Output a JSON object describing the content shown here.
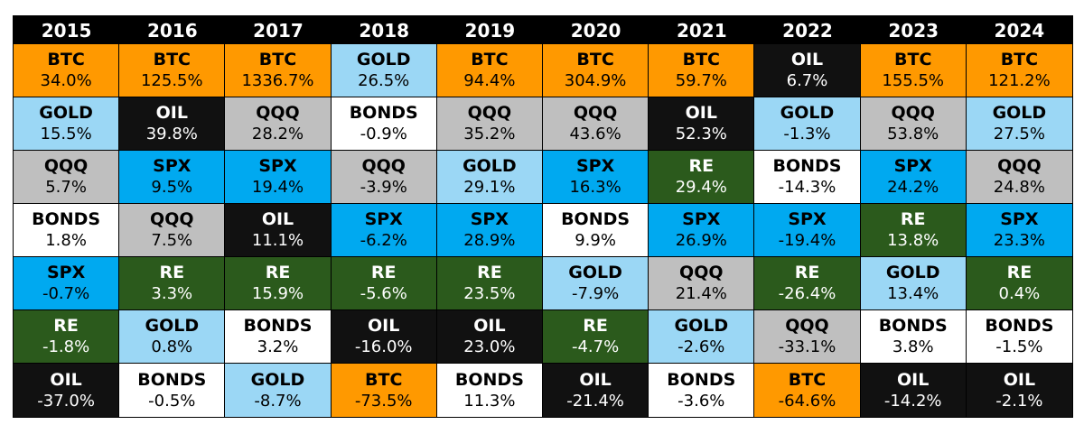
{
  "colors": {
    "BTC": {
      "bg": "#FF9900",
      "fg": "#000000"
    },
    "GOLD": {
      "bg": "#9BD7F5",
      "fg": "#000000"
    },
    "QQQ": {
      "bg": "#BFBFBF",
      "fg": "#000000"
    },
    "BONDS": {
      "bg": "#FFFFFF",
      "fg": "#000000"
    },
    "SPX": {
      "bg": "#00A9F0",
      "fg": "#000000"
    },
    "RE": {
      "bg": "#2B5A1C",
      "fg": "#FFFFFF"
    },
    "OIL": {
      "bg": "#111111",
      "fg": "#FFFFFF"
    }
  },
  "chart_data": {
    "type": "table",
    "columns": [
      {
        "year": "2015",
        "rows": [
          {
            "asset": "BTC",
            "ret": "34.0%"
          },
          {
            "asset": "GOLD",
            "ret": "15.5%"
          },
          {
            "asset": "QQQ",
            "ret": "5.7%"
          },
          {
            "asset": "BONDS",
            "ret": "1.8%"
          },
          {
            "asset": "SPX",
            "ret": "-0.7%"
          },
          {
            "asset": "RE",
            "ret": "-1.8%"
          },
          {
            "asset": "OIL",
            "ret": "-37.0%"
          }
        ]
      },
      {
        "year": "2016",
        "rows": [
          {
            "asset": "BTC",
            "ret": "125.5%"
          },
          {
            "asset": "OIL",
            "ret": "39.8%"
          },
          {
            "asset": "SPX",
            "ret": "9.5%"
          },
          {
            "asset": "QQQ",
            "ret": "7.5%"
          },
          {
            "asset": "RE",
            "ret": "3.3%"
          },
          {
            "asset": "GOLD",
            "ret": "0.8%"
          },
          {
            "asset": "BONDS",
            "ret": "-0.5%"
          }
        ]
      },
      {
        "year": "2017",
        "rows": [
          {
            "asset": "BTC",
            "ret": "1336.7%"
          },
          {
            "asset": "QQQ",
            "ret": "28.2%"
          },
          {
            "asset": "SPX",
            "ret": "19.4%"
          },
          {
            "asset": "OIL",
            "ret": "11.1%"
          },
          {
            "asset": "RE",
            "ret": "15.9%"
          },
          {
            "asset": "BONDS",
            "ret": "3.2%"
          },
          {
            "asset": "GOLD",
            "ret": "-8.7%"
          }
        ]
      },
      {
        "year": "2018",
        "rows": [
          {
            "asset": "GOLD",
            "ret": "26.5%"
          },
          {
            "asset": "BONDS",
            "ret": "-0.9%"
          },
          {
            "asset": "QQQ",
            "ret": "-3.9%"
          },
          {
            "asset": "SPX",
            "ret": "-6.2%"
          },
          {
            "asset": "RE",
            "ret": "-5.6%"
          },
          {
            "asset": "OIL",
            "ret": "-16.0%"
          },
          {
            "asset": "BTC",
            "ret": "-73.5%"
          }
        ]
      },
      {
        "year": "2019",
        "rows": [
          {
            "asset": "BTC",
            "ret": "94.4%"
          },
          {
            "asset": "QQQ",
            "ret": "35.2%"
          },
          {
            "asset": "GOLD",
            "ret": "29.1%"
          },
          {
            "asset": "SPX",
            "ret": "28.9%"
          },
          {
            "asset": "RE",
            "ret": "23.5%"
          },
          {
            "asset": "OIL",
            "ret": "23.0%"
          },
          {
            "asset": "BONDS",
            "ret": "11.3%"
          }
        ]
      },
      {
        "year": "2020",
        "rows": [
          {
            "asset": "BTC",
            "ret": "304.9%"
          },
          {
            "asset": "QQQ",
            "ret": "43.6%"
          },
          {
            "asset": "SPX",
            "ret": "16.3%"
          },
          {
            "asset": "BONDS",
            "ret": "9.9%"
          },
          {
            "asset": "GOLD",
            "ret": "-7.9%"
          },
          {
            "asset": "RE",
            "ret": "-4.7%"
          },
          {
            "asset": "OIL",
            "ret": "-21.4%"
          }
        ]
      },
      {
        "year": "2021",
        "rows": [
          {
            "asset": "BTC",
            "ret": "59.7%"
          },
          {
            "asset": "OIL",
            "ret": "52.3%"
          },
          {
            "asset": "RE",
            "ret": "29.4%"
          },
          {
            "asset": "SPX",
            "ret": "26.9%"
          },
          {
            "asset": "QQQ",
            "ret": "21.4%"
          },
          {
            "asset": "GOLD",
            "ret": "-2.6%"
          },
          {
            "asset": "BONDS",
            "ret": "-3.6%"
          }
        ]
      },
      {
        "year": "2022",
        "rows": [
          {
            "asset": "OIL",
            "ret": "6.7%"
          },
          {
            "asset": "GOLD",
            "ret": "-1.3%"
          },
          {
            "asset": "BONDS",
            "ret": "-14.3%"
          },
          {
            "asset": "SPX",
            "ret": "-19.4%"
          },
          {
            "asset": "RE",
            "ret": "-26.4%"
          },
          {
            "asset": "QQQ",
            "ret": "-33.1%"
          },
          {
            "asset": "BTC",
            "ret": "-64.6%"
          }
        ]
      },
      {
        "year": "2023",
        "rows": [
          {
            "asset": "BTC",
            "ret": "155.5%"
          },
          {
            "asset": "QQQ",
            "ret": "53.8%"
          },
          {
            "asset": "SPX",
            "ret": "24.2%"
          },
          {
            "asset": "RE",
            "ret": "13.8%"
          },
          {
            "asset": "GOLD",
            "ret": "13.4%"
          },
          {
            "asset": "BONDS",
            "ret": "3.8%"
          },
          {
            "asset": "OIL",
            "ret": "-14.2%"
          }
        ]
      },
      {
        "year": "2024",
        "rows": [
          {
            "asset": "BTC",
            "ret": "121.2%"
          },
          {
            "asset": "GOLD",
            "ret": "27.5%"
          },
          {
            "asset": "QQQ",
            "ret": "24.8%"
          },
          {
            "asset": "SPX",
            "ret": "23.3%"
          },
          {
            "asset": "RE",
            "ret": "0.4%"
          },
          {
            "asset": "BONDS",
            "ret": "-1.5%"
          },
          {
            "asset": "OIL",
            "ret": "-2.1%"
          }
        ]
      }
    ]
  }
}
